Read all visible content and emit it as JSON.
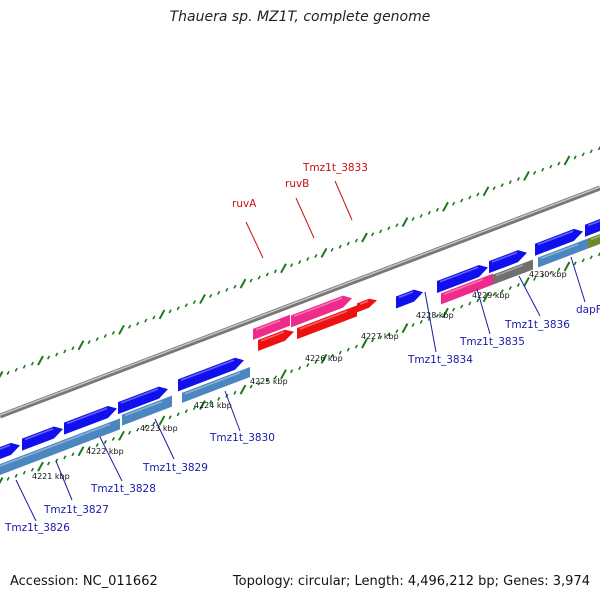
{
  "title": "Thauera sp. MZ1T, complete genome",
  "accession": "Accession: NC_011662",
  "summary": "Topology: circular; Length: 4,496,212 bp; Genes: 3,974",
  "colors": {
    "forward_gene": "#1010ee",
    "reverse_gene": "#4a86bf",
    "highlight_pink": "#ee2a8a",
    "highlight_red": "#ee1111",
    "pseudo_gray": "#707070",
    "olive_gene": "#6b8a2a",
    "tick_green": "#1a7a1a",
    "backbone": "#8a8a8a",
    "label_blue": "#1a1aaa",
    "label_red": "#cc1111"
  },
  "scale_ticks": [
    "4221 kbp",
    "4222 kbp",
    "4223 kbp",
    "4224 kbp",
    "4225 kbp",
    "4226 kbp",
    "4227 kbp",
    "4228 kbp",
    "4229 kbp",
    "4230 kbp"
  ],
  "gene_labels": {
    "ruvA": "ruvA",
    "ruvB": "ruvB",
    "t3833": "Tmz1t_3833",
    "t3826": "Tmz1t_3826",
    "t3827": "Tmz1t_3827",
    "t3828": "Tmz1t_3828",
    "t3829": "Tmz1t_3829",
    "t3830": "Tmz1t_3830",
    "t3834": "Tmz1t_3834",
    "t3835": "Tmz1t_3835",
    "t3836": "Tmz1t_3836",
    "dapF": "dapF"
  }
}
